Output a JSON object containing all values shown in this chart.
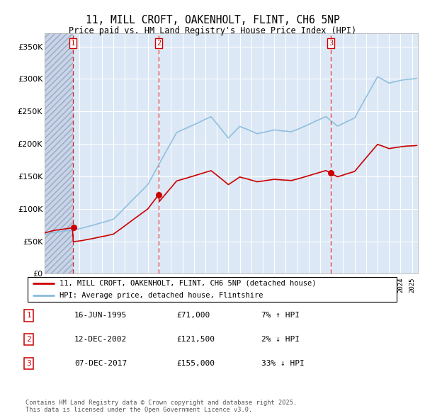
{
  "title": "11, MILL CROFT, OAKENHOLT, FLINT, CH6 5NP",
  "subtitle": "Price paid vs. HM Land Registry's House Price Index (HPI)",
  "ylim": [
    0,
    370000
  ],
  "yticks": [
    0,
    50000,
    100000,
    150000,
    200000,
    250000,
    300000,
    350000
  ],
  "ytick_labels": [
    "£0",
    "£50K",
    "£100K",
    "£150K",
    "£200K",
    "£250K",
    "£300K",
    "£350K"
  ],
  "background_color": "#ffffff",
  "plot_bg_color": "#dce8f5",
  "grid_color": "#ffffff",
  "transactions": [
    {
      "date": 1995.46,
      "price": 71000,
      "label": "1"
    },
    {
      "date": 2002.95,
      "price": 121500,
      "label": "2"
    },
    {
      "date": 2017.93,
      "price": 155000,
      "label": "3"
    }
  ],
  "transaction_line_color": "#cc0000",
  "hpi_line_color": "#88bbdd",
  "property_line_color": "#cc0000",
  "legend_label_property": "11, MILL CROFT, OAKENHOLT, FLINT, CH6 5NP (detached house)",
  "legend_label_hpi": "HPI: Average price, detached house, Flintshire",
  "table_rows": [
    {
      "num": "1",
      "date": "16-JUN-1995",
      "price": "£71,000",
      "hpi": "7% ↑ HPI"
    },
    {
      "num": "2",
      "date": "12-DEC-2002",
      "price": "£121,500",
      "hpi": "2% ↓ HPI"
    },
    {
      "num": "3",
      "date": "07-DEC-2017",
      "price": "£155,000",
      "hpi": "33% ↓ HPI"
    }
  ],
  "footer": "Contains HM Land Registry data © Crown copyright and database right 2025.\nThis data is licensed under the Open Government Licence v3.0.",
  "xmin": 1993.0,
  "xmax": 2025.5,
  "hatch_end": 1995.46
}
